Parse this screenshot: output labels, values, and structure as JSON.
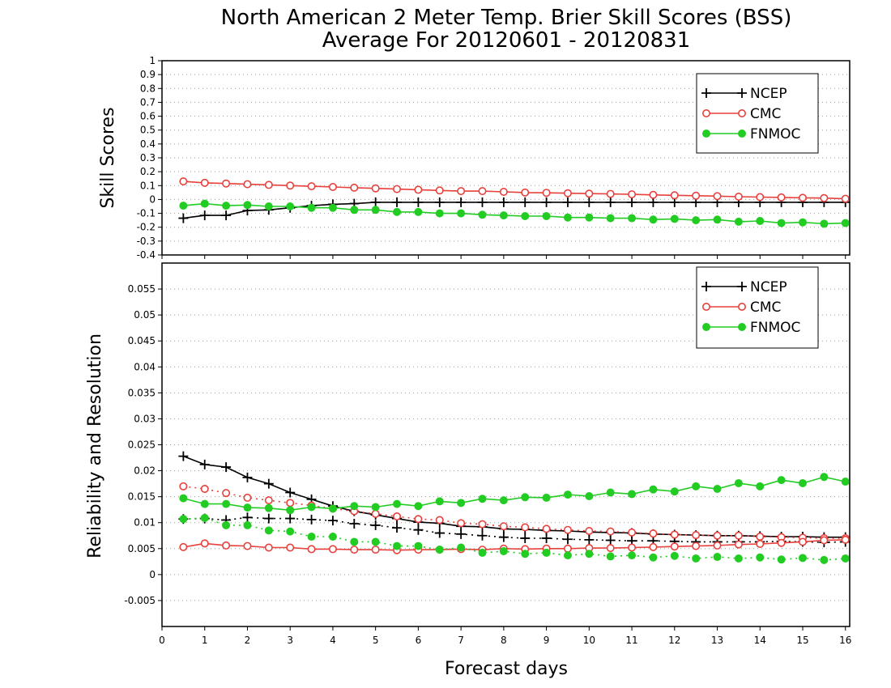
{
  "title_line1": "North American 2 Meter Temp. Brier Skill Scores (BSS)",
  "title_line2": "Average For 20120601 - 20120831",
  "xlabel": "Forecast days",
  "colors": {
    "NCEP": "#000000",
    "CMC": "#e8403c",
    "FNMOC": "#22cc22"
  },
  "chart_data": [
    {
      "type": "line",
      "ylabel": "Skill Scores",
      "xlim": [
        0,
        16.1
      ],
      "ylim": [
        -0.4,
        1
      ],
      "x_ticks": [
        0,
        1,
        2,
        3,
        4,
        5,
        6,
        7,
        8,
        9,
        10,
        11,
        12,
        13,
        14,
        15,
        16
      ],
      "y_ticks": [
        -0.4,
        -0.3,
        -0.2,
        -0.1,
        0,
        0.1,
        0.2,
        0.3,
        0.4,
        0.5,
        0.6,
        0.7,
        0.8,
        0.9,
        1
      ],
      "y_tick_labels": [
        "-0.4",
        "-0.3",
        "-0.2",
        "-0.1",
        "0",
        "0.1",
        "0.2",
        "0.3",
        "0.4",
        "0.5",
        "0.6",
        "0.7",
        "0.8",
        "0.9",
        "1"
      ],
      "grid": true,
      "legend": "top-right",
      "legend_entries": [
        "NCEP",
        "CMC",
        "FNMOC"
      ],
      "x": [
        0.5,
        1,
        1.5,
        2,
        2.5,
        3,
        3.5,
        4,
        4.5,
        5,
        5.5,
        6,
        6.5,
        7,
        7.5,
        8,
        8.5,
        9,
        9.5,
        10,
        10.5,
        11,
        11.5,
        12,
        12.5,
        13,
        13.5,
        14,
        14.5,
        15,
        15.5,
        16
      ],
      "series": [
        {
          "name": "NCEP",
          "style": "solid",
          "marker": "plus",
          "values": [
            -0.135,
            -0.115,
            -0.115,
            -0.08,
            -0.075,
            -0.06,
            -0.045,
            -0.035,
            -0.03,
            -0.02,
            -0.02,
            -0.02,
            -0.02,
            -0.02,
            -0.02,
            -0.02,
            -0.02,
            -0.02,
            -0.02,
            -0.02,
            -0.02,
            -0.02,
            -0.02,
            -0.02,
            -0.02,
            -0.02,
            -0.02,
            -0.02,
            -0.02,
            -0.02,
            -0.02,
            -0.02
          ]
        },
        {
          "name": "CMC",
          "style": "solid",
          "marker": "open-circle",
          "values": [
            0.13,
            0.12,
            0.115,
            0.11,
            0.105,
            0.1,
            0.095,
            0.09,
            0.085,
            0.08,
            0.075,
            0.07,
            0.065,
            0.06,
            0.06,
            0.055,
            0.05,
            0.048,
            0.045,
            0.042,
            0.04,
            0.037,
            0.033,
            0.03,
            0.027,
            0.024,
            0.02,
            0.017,
            0.015,
            0.012,
            0.01,
            0.005
          ]
        },
        {
          "name": "FNMOC",
          "style": "solid",
          "marker": "filled-circle",
          "values": [
            -0.045,
            -0.03,
            -0.045,
            -0.04,
            -0.05,
            -0.05,
            -0.06,
            -0.06,
            -0.075,
            -0.075,
            -0.09,
            -0.09,
            -0.1,
            -0.1,
            -0.11,
            -0.115,
            -0.12,
            -0.12,
            -0.13,
            -0.13,
            -0.135,
            -0.135,
            -0.145,
            -0.14,
            -0.15,
            -0.145,
            -0.16,
            -0.155,
            -0.17,
            -0.165,
            -0.175,
            -0.17
          ]
        }
      ]
    },
    {
      "type": "line",
      "ylabel": "Reliability and Resolution",
      "xlim": [
        0,
        16.1
      ],
      "ylim": [
        -0.01,
        0.06
      ],
      "x_ticks": [
        0,
        1,
        2,
        3,
        4,
        5,
        6,
        7,
        8,
        9,
        10,
        11,
        12,
        13,
        14,
        15,
        16
      ],
      "y_ticks": [
        -0.005,
        0,
        0.005,
        0.01,
        0.015,
        0.02,
        0.025,
        0.03,
        0.035,
        0.04,
        0.045,
        0.05,
        0.055
      ],
      "y_tick_labels": [
        "-0.005",
        "0",
        "0.005",
        "0.01",
        "0.015",
        "0.02",
        "0.025",
        "0.03",
        "0.035",
        "0.04",
        "0.045",
        "0.05",
        "0.055"
      ],
      "grid": true,
      "legend": "top-right",
      "legend_entries": [
        "NCEP",
        "CMC",
        "FNMOC"
      ],
      "x": [
        0.5,
        1,
        1.5,
        2,
        2.5,
        3,
        3.5,
        4,
        4.5,
        5,
        5.5,
        6,
        6.5,
        7,
        7.5,
        8,
        8.5,
        9,
        9.5,
        10,
        10.5,
        11,
        11.5,
        12,
        12.5,
        13,
        13.5,
        14,
        14.5,
        15,
        15.5,
        16
      ],
      "series": [
        {
          "name": "NCEP",
          "style": "solid",
          "marker": "plus",
          "values": [
            0.0228,
            0.0212,
            0.0207,
            0.0187,
            0.0175,
            0.0158,
            0.0145,
            0.0132,
            0.0122,
            0.0115,
            0.0108,
            0.0101,
            0.0099,
            0.0093,
            0.0092,
            0.0088,
            0.0087,
            0.0085,
            0.0084,
            0.0082,
            0.0081,
            0.008,
            0.0078,
            0.0077,
            0.0076,
            0.0075,
            0.0075,
            0.0074,
            0.0073,
            0.0073,
            0.0072,
            0.0072
          ]
        },
        {
          "name": "NCEP",
          "style": "dotted",
          "marker": "plus",
          "values": [
            0.0107,
            0.0108,
            0.0105,
            0.011,
            0.0108,
            0.0108,
            0.0106,
            0.0104,
            0.0098,
            0.0095,
            0.009,
            0.0086,
            0.008,
            0.0078,
            0.0075,
            0.0072,
            0.007,
            0.007,
            0.0068,
            0.0067,
            0.0066,
            0.0065,
            0.0065,
            0.0064,
            0.0063,
            0.0063,
            0.0063,
            0.0063,
            0.0064,
            0.0063,
            0.0062,
            0.0063
          ]
        },
        {
          "name": "CMC",
          "style": "dotted",
          "marker": "open-circle",
          "values": [
            0.017,
            0.0165,
            0.0157,
            0.0148,
            0.0143,
            0.0138,
            0.0133,
            0.0127,
            0.0122,
            0.0117,
            0.0112,
            0.0107,
            0.0105,
            0.0099,
            0.0097,
            0.0093,
            0.0091,
            0.0088,
            0.0086,
            0.0084,
            0.0083,
            0.0081,
            0.0079,
            0.0077,
            0.0076,
            0.0075,
            0.0075,
            0.0073,
            0.0072,
            0.0071,
            0.007,
            0.007
          ]
        },
        {
          "name": "CMC",
          "style": "solid",
          "marker": "open-circle",
          "values": [
            0.0053,
            0.006,
            0.0056,
            0.0055,
            0.0052,
            0.0052,
            0.0049,
            0.0049,
            0.0048,
            0.0048,
            0.0047,
            0.0048,
            0.0048,
            0.0049,
            0.0048,
            0.005,
            0.0049,
            0.005,
            0.005,
            0.0051,
            0.0051,
            0.0052,
            0.0053,
            0.0054,
            0.0055,
            0.0056,
            0.0058,
            0.0059,
            0.0061,
            0.0063,
            0.0066,
            0.0067
          ]
        },
        {
          "name": "FNMOC",
          "style": "solid",
          "marker": "filled-circle",
          "values": [
            0.0147,
            0.0136,
            0.0136,
            0.0129,
            0.0128,
            0.0124,
            0.013,
            0.0127,
            0.0132,
            0.013,
            0.0136,
            0.0132,
            0.0141,
            0.0138,
            0.0146,
            0.0143,
            0.0149,
            0.0148,
            0.0154,
            0.0151,
            0.0158,
            0.0155,
            0.0164,
            0.016,
            0.017,
            0.0165,
            0.0176,
            0.017,
            0.0182,
            0.0176,
            0.0188,
            0.0179
          ]
        },
        {
          "name": "FNMOC",
          "style": "dotted",
          "marker": "filled-circle",
          "values": [
            0.0107,
            0.0109,
            0.0095,
            0.0095,
            0.0085,
            0.0083,
            0.0073,
            0.0073,
            0.0063,
            0.0063,
            0.0055,
            0.0055,
            0.0048,
            0.0052,
            0.0042,
            0.0045,
            0.004,
            0.0042,
            0.0037,
            0.004,
            0.0035,
            0.0037,
            0.0033,
            0.0036,
            0.0031,
            0.0034,
            0.0031,
            0.0033,
            0.0029,
            0.0032,
            0.0028,
            0.0031
          ]
        }
      ]
    }
  ]
}
